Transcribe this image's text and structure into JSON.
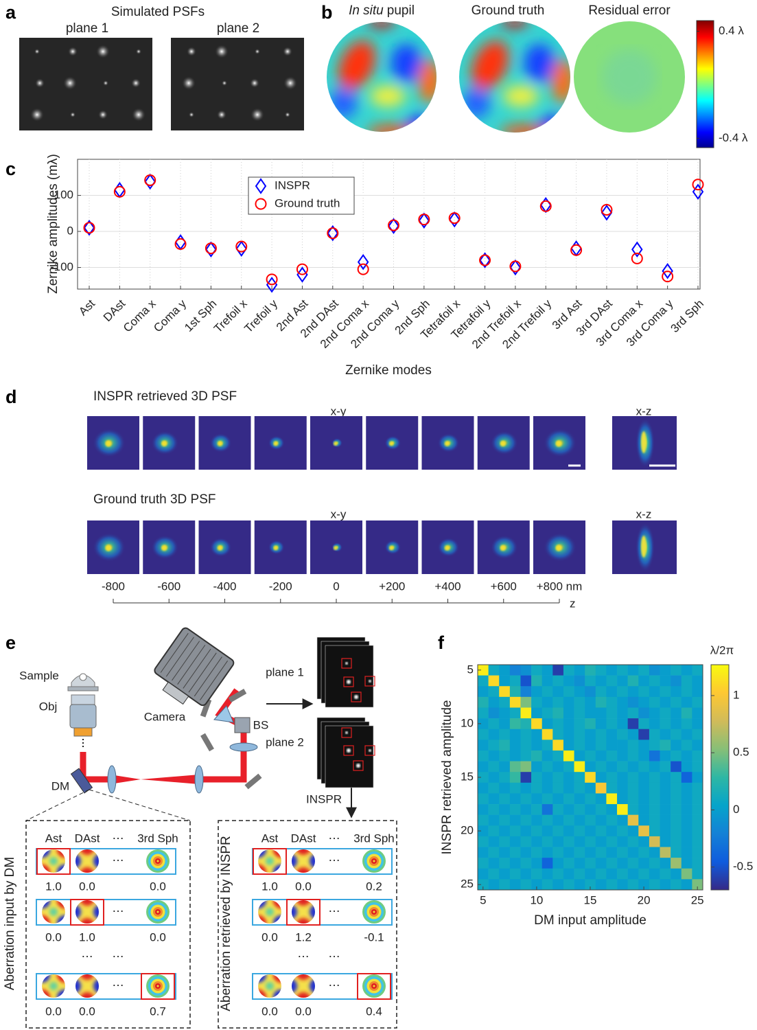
{
  "panels": {
    "a": {
      "label": "a",
      "title": "Simulated PSFs",
      "planes": [
        "plane 1",
        "plane 2"
      ]
    },
    "b": {
      "label": "b",
      "titles": [
        {
          "italic": "In situ",
          "text": "pupil"
        },
        {
          "text": "Ground truth"
        },
        {
          "text": "Residual error"
        }
      ],
      "colorbar": {
        "lim": [
          -0.47,
          0.48
        ],
        "ticks": [
          {
            "value": 0.4,
            "label": "0.4 λ"
          },
          {
            "value": -0.4,
            "label": "-0.4 λ"
          }
        ]
      }
    },
    "d": {
      "label": "d",
      "rows": [
        {
          "title": "INSPR retrieved 3D PSF",
          "xy": "x-y",
          "xz": "x-z"
        },
        {
          "title": "Ground truth 3D PSF",
          "xy": "x-y",
          "xz": "x-z"
        }
      ],
      "z_axis": {
        "label": "z",
        "lim": [
          -800,
          800
        ],
        "ticks": [
          -800,
          -600,
          -400,
          -200,
          0,
          {
            "value": 200,
            "label": "+200"
          },
          {
            "value": 400,
            "label": "+400"
          },
          {
            "value": 600,
            "label": "+600"
          },
          {
            "value": 800,
            "label": "+800 nm"
          }
        ]
      }
    },
    "e": {
      "label": "e",
      "parts": {
        "sample": "Sample",
        "objective": "Obj",
        "camera": "Camera",
        "beam_splitter": "BS",
        "mirror": "DM"
      },
      "planes": [
        "plane 1",
        "plane 2"
      ],
      "method": "INSPR",
      "tables": [
        {
          "title": "Aberration input by DM",
          "columns": [
            "Ast",
            "DAst",
            "3rd Sph"
          ],
          "ellipsis": "⋯",
          "rows": [
            [
              "1.0",
              "0.0",
              "0.0"
            ],
            [
              "0.0",
              "1.0",
              "0.0"
            ],
            [
              "0.0",
              "0.0",
              "0.7"
            ]
          ]
        },
        {
          "title": "Aberration retrieved by INSPR",
          "columns": [
            "Ast",
            "DAst",
            "3rd Sph"
          ],
          "ellipsis": "⋯",
          "rows": [
            [
              "1.0",
              "0.0",
              "0.2"
            ],
            [
              "0.0",
              "1.2",
              "-0.1"
            ],
            [
              "0.0",
              "0.0",
              "0.4"
            ]
          ]
        }
      ]
    }
  },
  "chart_data": [
    {
      "type": "scatter",
      "panel_label": "c",
      "x_label": "Zernike modes",
      "y_label": "Zernike amplitudes (mλ)",
      "categories": [
        "Ast",
        "DAst",
        "Coma x",
        "Coma y",
        "1st Sph",
        "Trefoil x",
        "Trefoil y",
        "2nd Ast",
        "2nd DAst",
        "2nd Coma x",
        "2nd Coma y",
        "2nd Sph",
        "Tetrafoil x",
        "Tetrafoil y",
        "2nd Trefoil x",
        "2nd Trefoil y",
        "3rd Ast",
        "3rd DAst",
        "3rd Coma x",
        "3rd Coma y",
        "3rd Sph"
      ],
      "series": [
        {
          "name": "INSPR",
          "color": "#0000ff",
          "marker": "diamond",
          "values": [
            10,
            115,
            138,
            -30,
            -50,
            -48,
            -148,
            -120,
            -5,
            -85,
            15,
            30,
            33,
            -80,
            -100,
            73,
            -47,
            52,
            -50,
            -110,
            110
          ]
        },
        {
          "name": "Ground truth",
          "color": "#ff0000",
          "marker": "circle",
          "values": [
            10,
            110,
            142,
            -35,
            -47,
            -42,
            -133,
            -105,
            -5,
            -105,
            17,
            33,
            37,
            -80,
            -97,
            70,
            -52,
            60,
            -75,
            -125,
            130
          ]
        }
      ],
      "ylim": [
        -160,
        200
      ],
      "yticks": [
        -100,
        0,
        100
      ],
      "grid": true,
      "legend": "top"
    },
    {
      "type": "heatmap",
      "panel_label": "f",
      "x_label": "DM input amplitude",
      "y_label": "INSPR retrieved amplitude",
      "colormap": "parula",
      "x": [
        5,
        6,
        7,
        8,
        9,
        10,
        11,
        12,
        13,
        14,
        15,
        16,
        17,
        18,
        19,
        20,
        21,
        22,
        23,
        24,
        25
      ],
      "y": [
        5,
        6,
        7,
        8,
        9,
        10,
        11,
        12,
        13,
        14,
        15,
        16,
        17,
        18,
        19,
        20,
        21,
        22,
        23,
        24,
        25
      ],
      "z": [
        [
          1.2,
          0.1,
          0.0,
          -0.2,
          -0.1,
          0.1,
          0.0,
          -0.6,
          0.1,
          0.0,
          0.2,
          0.1,
          0.0,
          0.1,
          0.0,
          0.1,
          -0.1,
          0.0,
          0.1,
          0.0,
          0.1
        ],
        [
          0.1,
          1.1,
          0.0,
          0.1,
          -0.5,
          0.2,
          0.0,
          0.1,
          0.0,
          -0.1,
          0.1,
          0.0,
          0.1,
          0.0,
          0.2,
          0.0,
          0.1,
          0.0,
          -0.1,
          0.1,
          0.0
        ],
        [
          0.0,
          0.1,
          1.1,
          0.2,
          -0.2,
          0.0,
          0.1,
          0.0,
          0.1,
          0.0,
          -0.1,
          0.1,
          0.0,
          0.1,
          0.0,
          0.1,
          0.0,
          0.1,
          0.0,
          0.1,
          0.0
        ],
        [
          0.2,
          0.0,
          0.1,
          1.1,
          0.5,
          0.1,
          0.0,
          0.1,
          0.0,
          0.1,
          0.0,
          0.2,
          0.1,
          0.0,
          -0.1,
          0.0,
          0.1,
          0.0,
          0.1,
          0.0,
          0.1
        ],
        [
          0.1,
          -0.1,
          0.0,
          0.1,
          1.2,
          0.0,
          0.1,
          0.2,
          0.0,
          0.1,
          0.0,
          0.0,
          0.1,
          0.0,
          0.1,
          -0.1,
          0.0,
          0.1,
          0.0,
          0.2,
          0.0
        ],
        [
          0.0,
          0.1,
          0.0,
          0.3,
          0.2,
          1.1,
          0.0,
          0.1,
          0.0,
          0.1,
          0.2,
          0.0,
          0.1,
          0.0,
          -0.6,
          0.1,
          0.0,
          0.1,
          0.0,
          0.1,
          0.0
        ],
        [
          0.1,
          0.0,
          0.1,
          0.0,
          0.1,
          0.0,
          1.1,
          0.1,
          0.0,
          0.1,
          0.0,
          0.1,
          0.0,
          0.1,
          0.0,
          -0.6,
          0.1,
          0.0,
          0.1,
          0.0,
          0.1
        ],
        [
          0.0,
          0.1,
          0.2,
          0.0,
          0.1,
          0.0,
          0.1,
          1.1,
          0.0,
          0.1,
          0.0,
          0.1,
          0.0,
          0.0,
          0.1,
          0.0,
          0.1,
          0.2,
          0.0,
          0.1,
          0.0
        ],
        [
          0.1,
          0.0,
          0.1,
          0.0,
          0.1,
          0.2,
          0.0,
          0.1,
          1.2,
          0.0,
          0.1,
          0.0,
          0.1,
          0.0,
          0.1,
          0.0,
          -0.3,
          0.0,
          0.1,
          0.0,
          0.1
        ],
        [
          0.0,
          0.1,
          0.0,
          0.4,
          0.5,
          0.0,
          0.1,
          0.0,
          0.1,
          1.2,
          0.0,
          0.1,
          0.0,
          0.1,
          0.0,
          0.1,
          0.0,
          0.1,
          -0.5,
          0.0,
          0.1
        ],
        [
          0.1,
          0.0,
          0.1,
          0.3,
          -0.6,
          0.1,
          0.0,
          0.1,
          0.0,
          0.1,
          1.1,
          0.0,
          0.1,
          0.0,
          0.1,
          0.0,
          0.1,
          0.0,
          0.1,
          -0.4,
          0.0
        ],
        [
          0.0,
          0.1,
          0.0,
          0.1,
          0.0,
          0.1,
          0.0,
          0.1,
          0.0,
          0.1,
          0.0,
          1.0,
          0.1,
          0.0,
          0.1,
          0.0,
          0.1,
          0.0,
          0.1,
          0.0,
          0.1
        ],
        [
          0.1,
          0.0,
          0.1,
          0.0,
          0.1,
          0.0,
          0.1,
          0.0,
          0.1,
          0.0,
          0.1,
          0.0,
          1.2,
          0.0,
          0.1,
          0.0,
          0.1,
          0.0,
          0.1,
          0.0,
          0.1
        ],
        [
          0.0,
          0.1,
          0.0,
          0.1,
          0.0,
          0.1,
          -0.3,
          0.1,
          0.0,
          0.1,
          0.0,
          0.1,
          0.0,
          1.2,
          0.1,
          0.0,
          0.1,
          0.0,
          0.1,
          0.0,
          0.1
        ],
        [
          0.1,
          0.0,
          0.1,
          0.0,
          0.1,
          0.0,
          0.1,
          0.0,
          0.1,
          0.0,
          0.1,
          0.0,
          0.1,
          0.0,
          0.9,
          0.0,
          0.1,
          0.0,
          0.1,
          0.0,
          0.1
        ],
        [
          0.0,
          0.1,
          0.0,
          0.1,
          0.0,
          0.1,
          0.0,
          0.1,
          0.0,
          0.1,
          0.0,
          0.1,
          0.0,
          0.1,
          0.0,
          0.9,
          0.1,
          0.0,
          0.1,
          0.0,
          0.1
        ],
        [
          0.1,
          0.0,
          0.1,
          0.0,
          0.1,
          0.0,
          0.1,
          0.0,
          0.1,
          0.0,
          0.1,
          0.0,
          0.1,
          0.0,
          0.1,
          0.0,
          0.8,
          0.0,
          0.1,
          0.0,
          0.1
        ],
        [
          0.0,
          0.1,
          0.0,
          0.1,
          0.0,
          0.1,
          0.0,
          0.1,
          0.0,
          0.1,
          0.0,
          0.1,
          0.0,
          0.1,
          0.0,
          0.1,
          0.0,
          0.7,
          0.1,
          0.0,
          0.1
        ],
        [
          0.1,
          0.0,
          0.1,
          0.0,
          0.1,
          0.0,
          -0.4,
          0.0,
          0.1,
          0.0,
          0.1,
          0.0,
          0.1,
          0.0,
          0.1,
          0.0,
          0.1,
          0.0,
          0.6,
          0.0,
          0.1
        ],
        [
          0.0,
          0.1,
          0.0,
          0.1,
          0.0,
          0.1,
          0.0,
          0.1,
          0.0,
          0.1,
          0.0,
          0.1,
          0.0,
          0.1,
          0.0,
          0.1,
          0.0,
          0.1,
          0.0,
          0.5,
          0.1
        ],
        [
          0.1,
          0.0,
          0.1,
          0.0,
          0.1,
          0.0,
          0.1,
          0.0,
          0.1,
          0.0,
          0.1,
          0.0,
          0.1,
          0.0,
          0.1,
          0.0,
          0.1,
          0.0,
          0.1,
          0.0,
          0.5
        ]
      ],
      "xlim": [
        4.5,
        25.5
      ],
      "ylim": [
        25.5,
        4.5
      ],
      "xticks": [
        5,
        10,
        15,
        20,
        25
      ],
      "yticks": [
        5,
        10,
        15,
        20,
        25
      ],
      "colorbar": {
        "title": "λ/2π",
        "lim": [
          -0.7,
          1.27
        ],
        "ticks": [
          -0.5,
          0,
          0.5,
          1
        ]
      }
    }
  ]
}
